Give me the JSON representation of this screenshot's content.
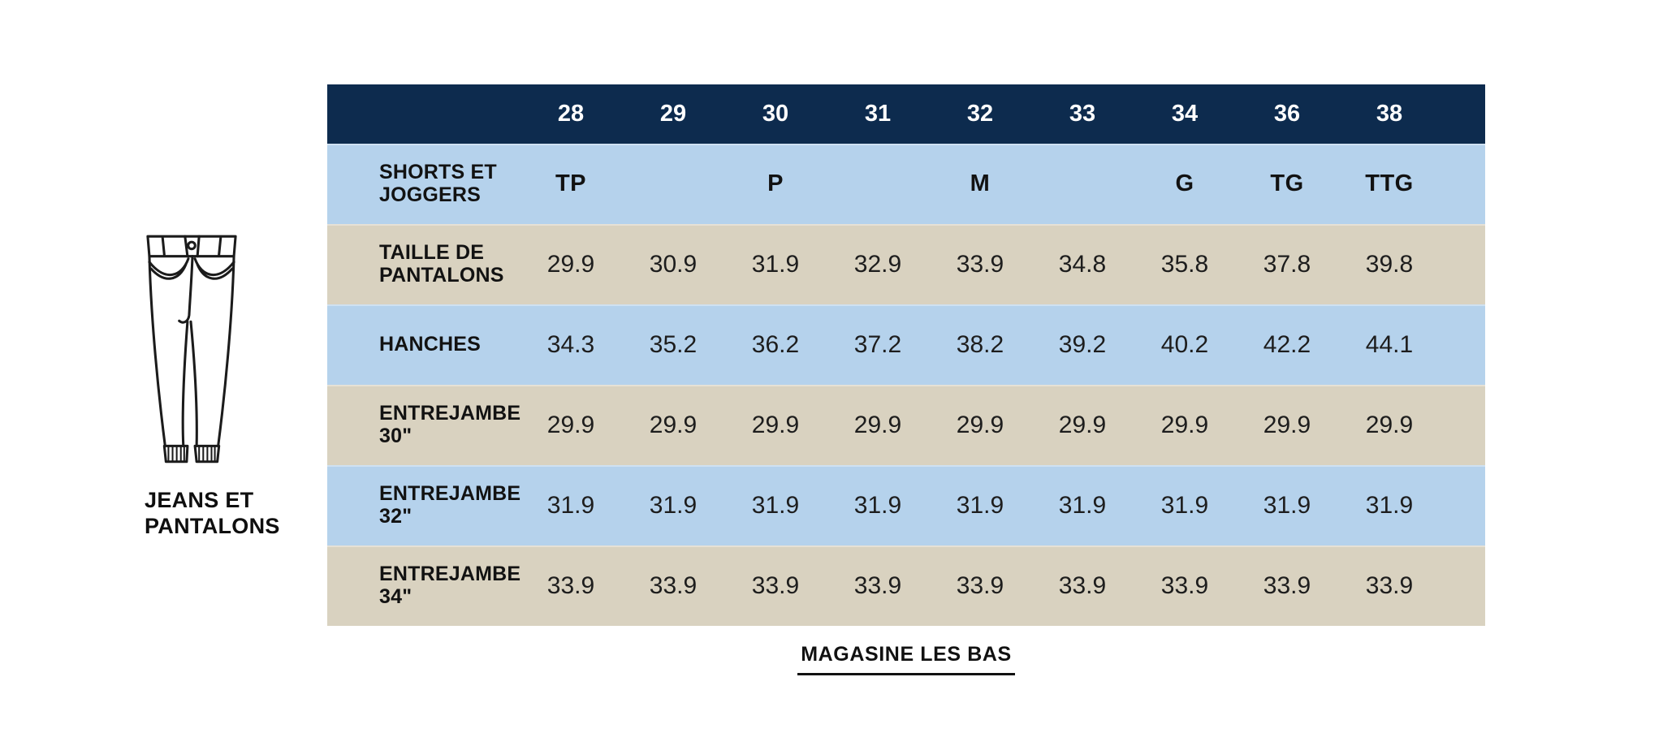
{
  "side_panel": {
    "icon": "jeans-line-drawing",
    "label": "JEANS ET PANTALONS"
  },
  "table": {
    "colors": {
      "header_bg": "#0d2b4e",
      "row_blue": "#b5d2ec",
      "row_tan": "#d9d2c0",
      "header_text": "#ffffff",
      "body_text": "#1d1d1d"
    },
    "columns": [
      "28",
      "29",
      "30",
      "31",
      "32",
      "33",
      "34",
      "36",
      "38"
    ],
    "rows": [
      {
        "label": "SHORTS ET JOGGERS",
        "style": "letters",
        "values": [
          "TP",
          "",
          "P",
          "",
          "M",
          "",
          "G",
          "TG",
          "TTG"
        ]
      },
      {
        "label": "TAILLE DE PANTALONS",
        "style": "numbers",
        "values": [
          "29.9",
          "30.9",
          "31.9",
          "32.9",
          "33.9",
          "34.8",
          "35.8",
          "37.8",
          "39.8"
        ]
      },
      {
        "label": "HANCHES",
        "style": "numbers",
        "values": [
          "34.3",
          "35.2",
          "36.2",
          "37.2",
          "38.2",
          "39.2",
          "40.2",
          "42.2",
          "44.1"
        ]
      },
      {
        "label": "ENTREJAMBE 30\"",
        "style": "numbers",
        "values": [
          "29.9",
          "29.9",
          "29.9",
          "29.9",
          "29.9",
          "29.9",
          "29.9",
          "29.9",
          "29.9"
        ]
      },
      {
        "label": "ENTREJAMBE 32\"",
        "style": "numbers",
        "values": [
          "31.9",
          "31.9",
          "31.9",
          "31.9",
          "31.9",
          "31.9",
          "31.9",
          "31.9",
          "31.9"
        ]
      },
      {
        "label": "ENTREJAMBE 34\"",
        "style": "numbers",
        "values": [
          "33.9",
          "33.9",
          "33.9",
          "33.9",
          "33.9",
          "33.9",
          "33.9",
          "33.9",
          "33.9"
        ]
      }
    ]
  },
  "footer": {
    "shop_link_label": "MAGASINE LES BAS"
  }
}
